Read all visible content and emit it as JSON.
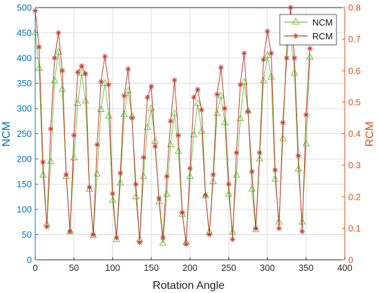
{
  "chart_data": {
    "type": "line",
    "xlabel": "Rotation Angle",
    "ylabel_left": "NCM",
    "ylabel_right": "RCM",
    "xlim": [
      0,
      400
    ],
    "ylim_left": [
      0,
      500
    ],
    "ylim_right": [
      0,
      0.8
    ],
    "xticks": [
      0,
      50,
      100,
      150,
      200,
      250,
      300,
      350,
      400
    ],
    "yticks_left": [
      0,
      50,
      100,
      150,
      200,
      250,
      300,
      350,
      400,
      450,
      500
    ],
    "yticks_right": [
      0,
      0.1,
      0.2,
      0.3,
      0.4,
      0.5,
      0.6,
      0.7,
      0.8
    ],
    "grid": true,
    "legend_position": "top-right",
    "colors": {
      "left_axis": "#0072bd",
      "right_axis": "#d95319",
      "ncm": "#77c044",
      "rcm": "#c0392b",
      "grid": "#dcdcdc"
    },
    "series": [
      {
        "name": "NCM",
        "axis": "left",
        "marker": "triangle",
        "x": [
          0,
          5,
          10,
          15,
          20,
          25,
          30,
          35,
          40,
          45,
          50,
          55,
          60,
          65,
          70,
          75,
          80,
          85,
          90,
          95,
          100,
          105,
          110,
          115,
          120,
          125,
          130,
          135,
          140,
          145,
          150,
          155,
          160,
          165,
          170,
          175,
          180,
          185,
          190,
          195,
          200,
          205,
          210,
          215,
          220,
          225,
          230,
          235,
          240,
          245,
          250,
          255,
          260,
          265,
          270,
          275,
          280,
          285,
          290,
          295,
          300,
          305,
          310,
          315,
          320,
          325,
          330,
          335,
          340,
          345,
          350,
          355
        ],
        "values": [
          450,
          380,
          168,
          70,
          195,
          355,
          412,
          338,
          165,
          56,
          202,
          310,
          370,
          315,
          140,
          48,
          170,
          298,
          350,
          285,
          118,
          40,
          152,
          288,
          335,
          285,
          125,
          40,
          165,
          262,
          300,
          235,
          115,
          33,
          130,
          228,
          290,
          215,
          90,
          35,
          165,
          248,
          310,
          255,
          127,
          55,
          155,
          290,
          325,
          272,
          130,
          55,
          168,
          280,
          352,
          295,
          140,
          60,
          200,
          355,
          405,
          362,
          160,
          75,
          240,
          430,
          450,
          370,
          180,
          75,
          230,
          402
        ]
      },
      {
        "name": "RCM",
        "axis": "right",
        "marker": "asterisk",
        "x": [
          0,
          5,
          10,
          15,
          20,
          25,
          30,
          35,
          40,
          45,
          50,
          55,
          60,
          65,
          70,
          75,
          80,
          85,
          90,
          95,
          100,
          105,
          110,
          115,
          120,
          125,
          130,
          135,
          140,
          145,
          150,
          155,
          160,
          165,
          170,
          175,
          180,
          185,
          190,
          195,
          200,
          205,
          210,
          215,
          220,
          225,
          230,
          235,
          240,
          245,
          250,
          255,
          260,
          265,
          270,
          275,
          280,
          285,
          290,
          295,
          300,
          305,
          310,
          315,
          320,
          325,
          330,
          335,
          340,
          345,
          350,
          355
        ],
        "values": [
          0.79,
          0.675,
          0.31,
          0.105,
          0.415,
          0.64,
          0.72,
          0.6,
          0.27,
          0.09,
          0.395,
          0.595,
          0.615,
          0.59,
          0.23,
          0.08,
          0.365,
          0.565,
          0.645,
          0.555,
          0.21,
          0.07,
          0.275,
          0.52,
          0.605,
          0.45,
          0.24,
          0.055,
          0.325,
          0.515,
          0.55,
          0.36,
          0.195,
          0.07,
          0.265,
          0.44,
          0.57,
          0.395,
          0.15,
          0.05,
          0.29,
          0.515,
          0.54,
          0.475,
          0.205,
          0.08,
          0.27,
          0.525,
          0.61,
          0.48,
          0.24,
          0.065,
          0.34,
          0.555,
          0.655,
          0.47,
          0.28,
          0.1,
          0.34,
          0.635,
          0.725,
          0.655,
          0.285,
          0.1,
          0.435,
          0.64,
          0.8,
          0.64,
          0.33,
          0.09,
          0.46,
          0.67
        ]
      }
    ]
  }
}
